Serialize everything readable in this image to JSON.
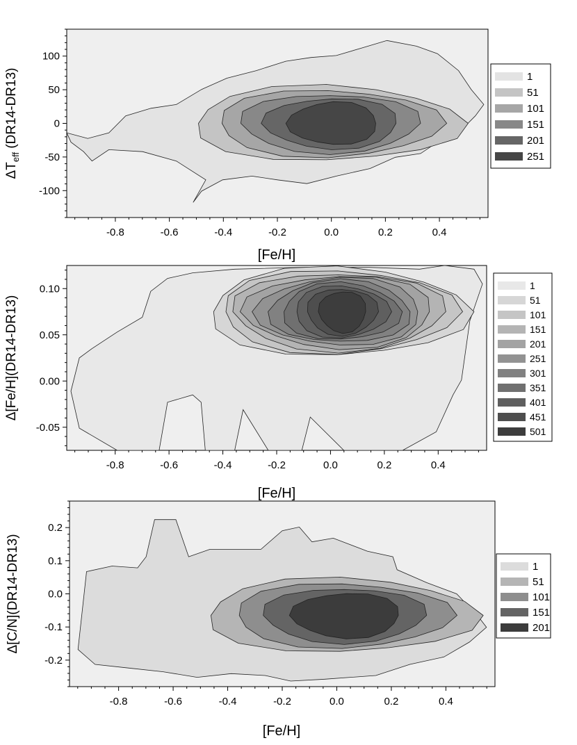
{
  "chart_data": [
    {
      "type": "contour",
      "xlabel": "[Fe/H]",
      "ylabel_parts": [
        "ΔT",
        "eff",
        " (DR14-DR13)"
      ],
      "xlim": [
        -0.98,
        0.58
      ],
      "ylim": [
        -140,
        140
      ],
      "x_ticks": [
        -0.8,
        -0.6,
        -0.4,
        -0.2,
        0.0,
        0.2,
        0.4
      ],
      "x_tick_labels": [
        "-0.8",
        "-0.6",
        "-0.4",
        "-0.2",
        "0.0",
        "0.2",
        "0.4"
      ],
      "y_ticks": [
        100,
        50,
        0,
        -50,
        -100
      ],
      "y_tick_labels": [
        "100",
        "50",
        "0",
        "-50",
        "-100"
      ],
      "peak": {
        "x": 0.02,
        "y": 0
      },
      "legend": {
        "labels": [
          "1",
          "51",
          "101",
          "151",
          "201",
          "251"
        ],
        "colors": [
          "#e3e3e3",
          "#c4c4c4",
          "#a6a6a6",
          "#888888",
          "#666666",
          "#464646"
        ]
      }
    },
    {
      "type": "contour",
      "xlabel": "[Fe/H]",
      "ylabel_parts": [
        "Δ[Fe/H](DR14-DR13)"
      ],
      "xlim": [
        -0.98,
        0.58
      ],
      "ylim": [
        -0.075,
        0.125
      ],
      "x_ticks": [
        -0.8,
        -0.6,
        -0.4,
        -0.2,
        0.0,
        0.2,
        0.4
      ],
      "x_tick_labels": [
        "-0.8",
        "-0.6",
        "-0.4",
        "-0.2",
        "0.0",
        "0.2",
        "0.4"
      ],
      "y_ticks": [
        0.1,
        0.05,
        0.0,
        -0.05
      ],
      "y_tick_labels": [
        "0.10",
        "0.05",
        "0.00",
        "-0.05"
      ],
      "peak": {
        "x": 0.05,
        "y": 0.075
      },
      "legend": {
        "labels": [
          "1",
          "51",
          "101",
          "151",
          "201",
          "251",
          "301",
          "351",
          "401",
          "451",
          "501"
        ],
        "colors": [
          "#e8e8e8",
          "#d6d6d6",
          "#c5c5c5",
          "#b4b4b4",
          "#a3a3a3",
          "#929292",
          "#818181",
          "#707070",
          "#5f5f5f",
          "#4e4e4e",
          "#3d3d3d"
        ]
      }
    },
    {
      "type": "contour",
      "xlabel": "[Fe/H]",
      "ylabel_parts": [
        "Δ[C/N](DR14-DR13)"
      ],
      "xlim": [
        -0.98,
        0.58
      ],
      "ylim": [
        -0.28,
        0.28
      ],
      "x_ticks": [
        -0.8,
        -0.6,
        -0.4,
        -0.2,
        0.0,
        0.2,
        0.4
      ],
      "x_tick_labels": [
        "-0.8",
        "-0.6",
        "-0.4",
        "-0.2",
        "0.0",
        "0.2",
        "0.4"
      ],
      "y_ticks": [
        0.2,
        0.1,
        0.0,
        -0.1,
        -0.2
      ],
      "y_tick_labels": [
        "0.2",
        "0.1",
        "0.0",
        "-0.1",
        "-0.2"
      ],
      "peak": {
        "x": 0.05,
        "y": -0.065
      },
      "legend": {
        "labels": [
          "1",
          "51",
          "101",
          "151",
          "201"
        ],
        "colors": [
          "#dcdcdc",
          "#b5b5b5",
          "#8e8e8e",
          "#646464",
          "#3c3c3c"
        ]
      }
    }
  ]
}
